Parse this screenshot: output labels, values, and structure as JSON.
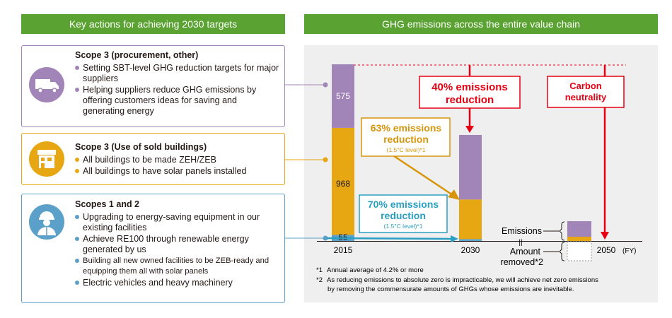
{
  "left_header": "Key actions for achieving 2030 targets",
  "right_header": "GHG emissions across the entire value chain",
  "colors": {
    "green": "#5aa332",
    "purple": "#a285b8",
    "gold": "#e6a712",
    "blue": "#5aa0c8",
    "red": "#e60012",
    "orange_text": "#d7950a",
    "teal_text": "#2a9fc3"
  },
  "cards": [
    {
      "title": "Scope 3 (procurement, other)",
      "icon": "truck-icon",
      "items": [
        "Setting SBT-level GHG reduction targets for major suppliers",
        "Helping suppliers reduce GHG emissions by offering customers ideas for saving and generating energy"
      ]
    },
    {
      "title": "Scope 3 (Use of sold buildings)",
      "icon": "house-icon",
      "items": [
        "All buildings to be made ZEH/ZEB",
        "All buildings to have solar panels installed"
      ]
    },
    {
      "title": "Scopes 1 and 2",
      "icon": "worker-icon",
      "items": [
        "Upgrading to energy-saving equipment in our existing facilities",
        "Achieve RE100 through renewable energy generated by us",
        "Building all new owned facilities to be ZEB-ready and equipping them all with solar panels",
        "Electric vehicles and heavy machinery"
      ]
    }
  ],
  "chart_data": {
    "type": "bar",
    "stacked": true,
    "categories": [
      "2015",
      "2030",
      "2050"
    ],
    "x_unit": "(FY)",
    "series": [
      {
        "name": "Scopes 1 and 2",
        "values": [
          55,
          17,
          null
        ]
      },
      {
        "name": "Scope 3 (Use of sold buildings)",
        "values": [
          968,
          358,
          null
        ]
      },
      {
        "name": "Scope 3 (procurement, other)",
        "values": [
          575,
          584,
          null
        ]
      }
    ],
    "data_labels": {
      "scope12_2015": "55",
      "scope3_use_2015": "968",
      "scope3_proc_2015": "575"
    },
    "callouts": {
      "reduction_40": "40% emissions reduction",
      "carbon_neutral": "Carbon neutrality",
      "reduction_63": "63% emissions reduction",
      "reduction_63_note": "(1.5°C level)*1",
      "reduction_70": "70% emissions reduction",
      "reduction_70_note": "(1.5°C level)*1"
    },
    "net_zero_legend": {
      "emissions": "Emissions",
      "removed": "Amount removed*2",
      "equal_sign": "||"
    }
  },
  "footnotes": [
    {
      "mark": "*1",
      "text": "Annual average of 4.2% or more"
    },
    {
      "mark": "*2",
      "text": "As reducing emissions to absolute zero is impracticable, we will achieve net zero emissions by removing the commensurate amounts of GHGs whose emissions are inevitable."
    }
  ]
}
